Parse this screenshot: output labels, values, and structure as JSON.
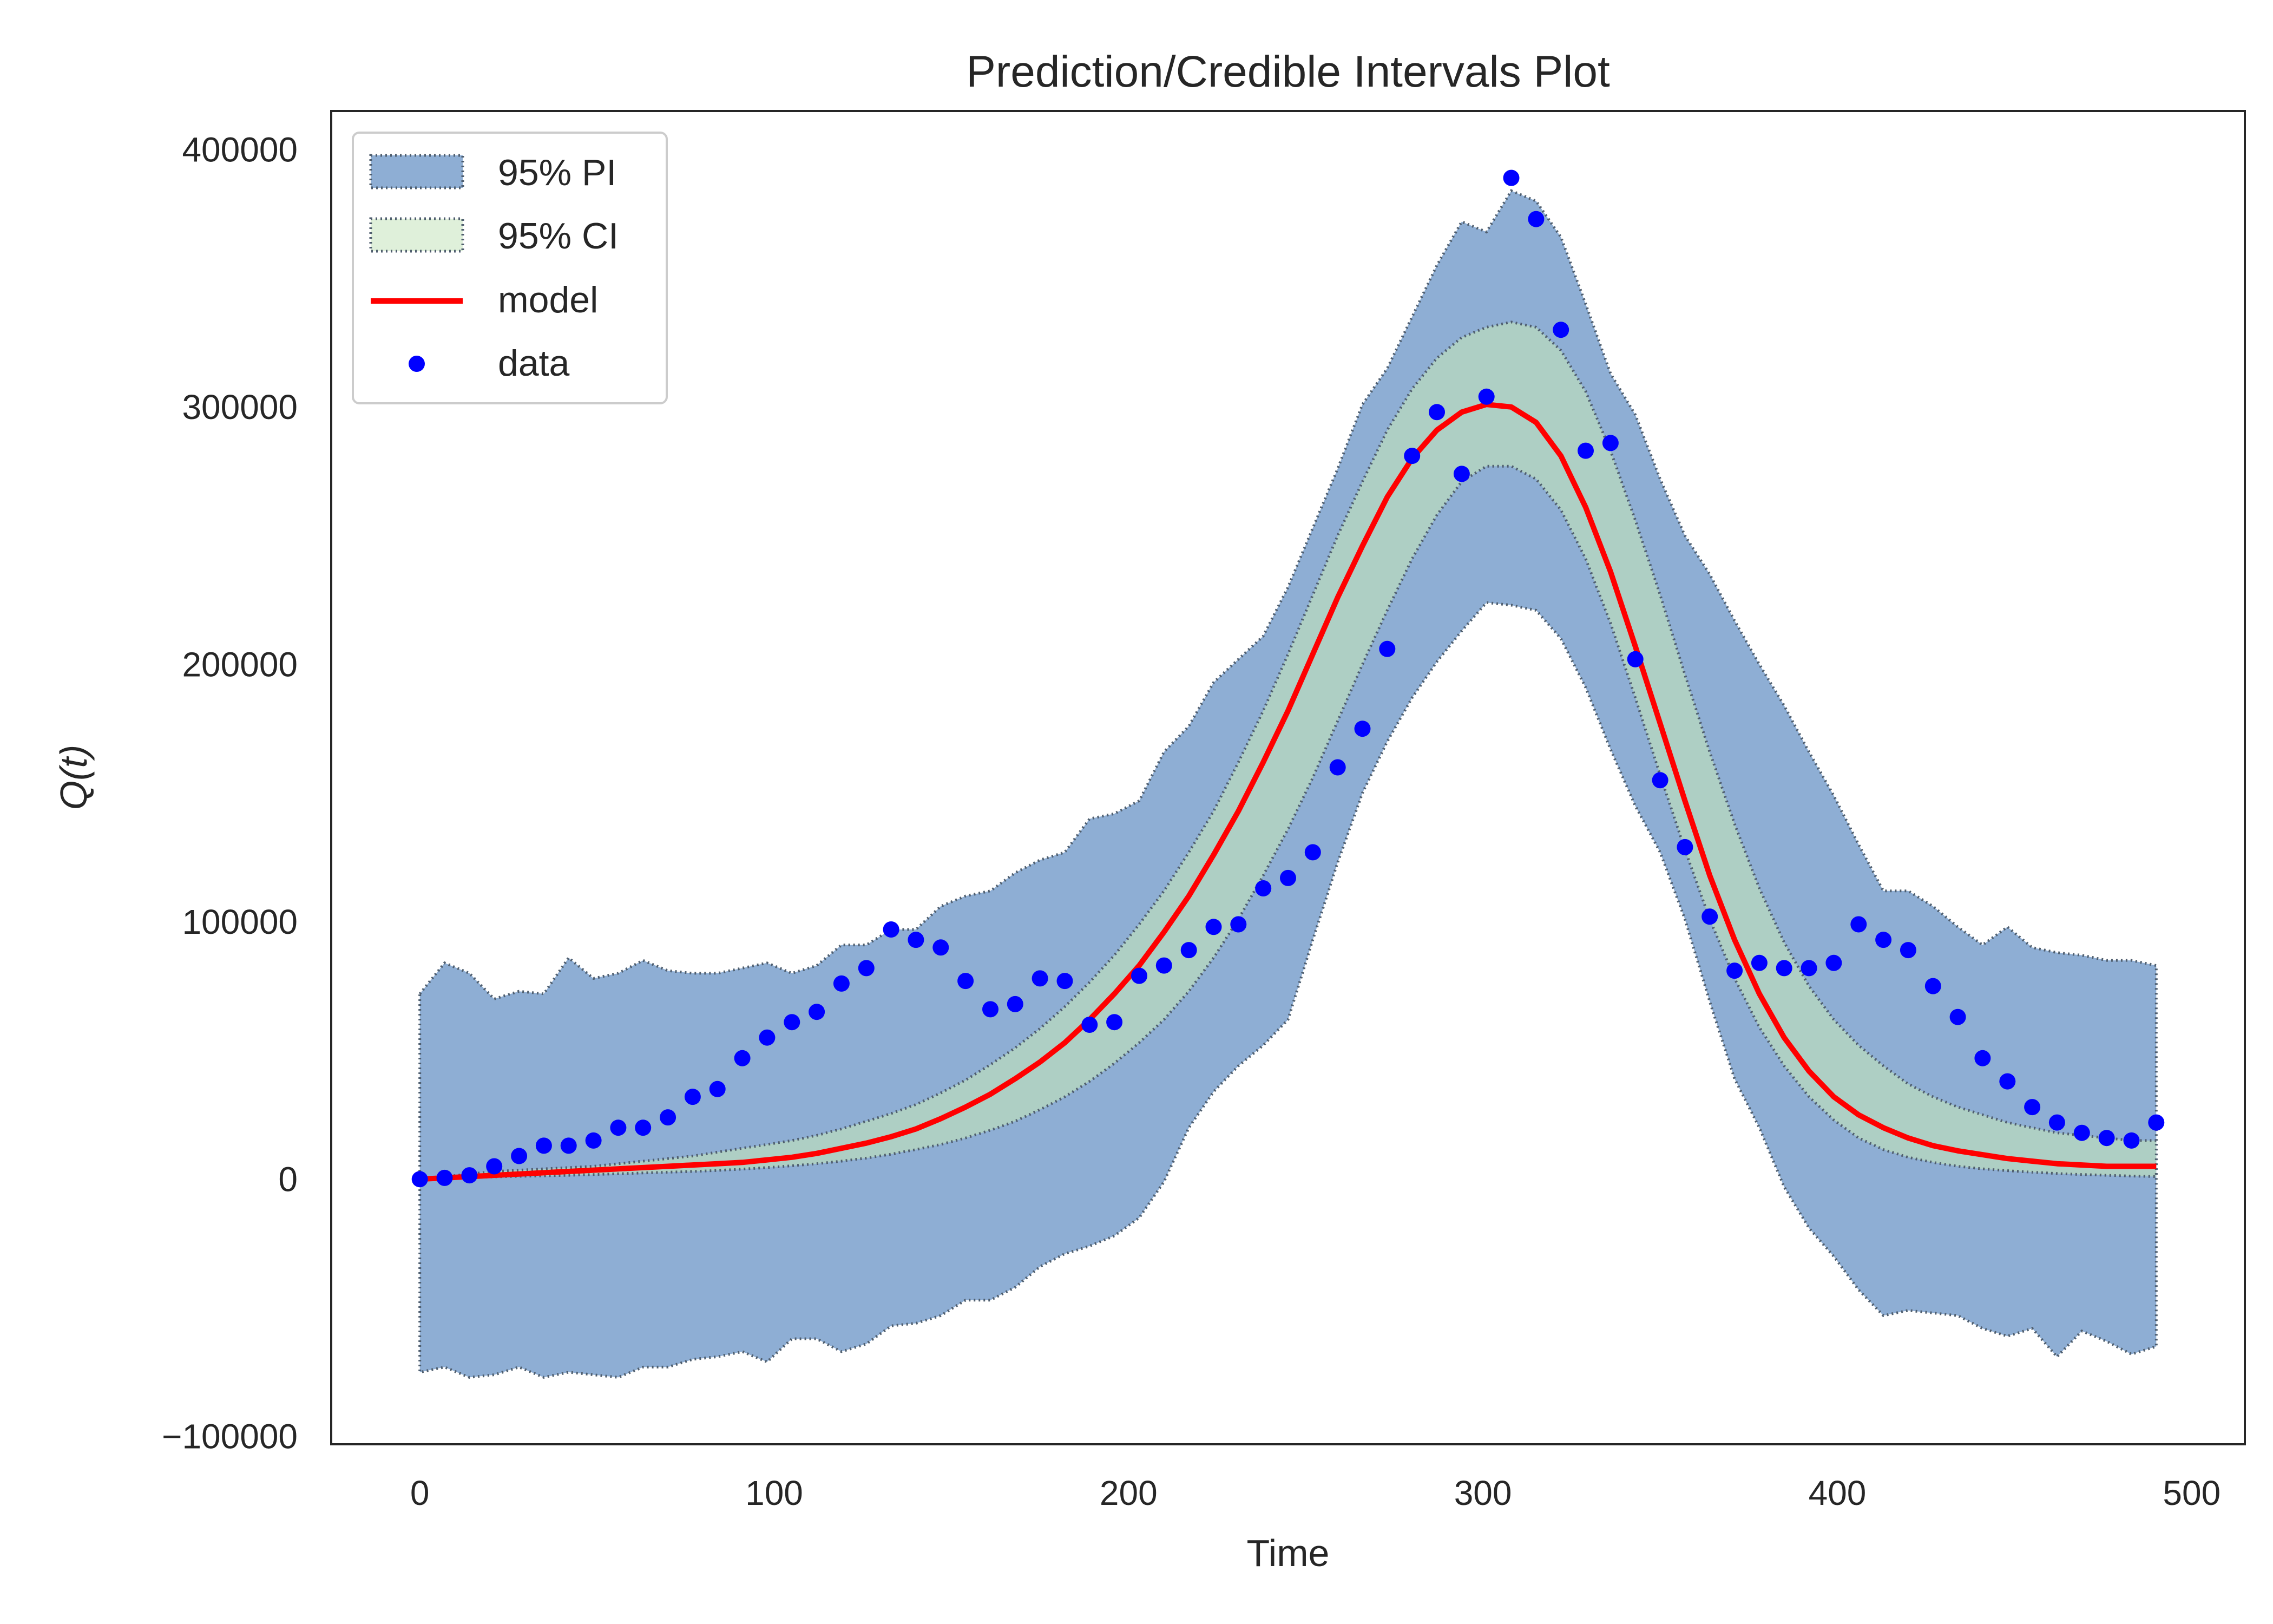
{
  "chart_data": {
    "type": "line",
    "title": "Prediction/Credible Intervals Plot",
    "xlabel": "Time",
    "ylabel": "Q(t)",
    "xlim": [
      -25,
      515
    ],
    "ylim": [
      -103000,
      415000
    ],
    "xticks": [
      0,
      100,
      200,
      300,
      400,
      500
    ],
    "xtick_labels": [
      "0",
      "100",
      "200",
      "300",
      "400",
      "500"
    ],
    "yticks": [
      -100000,
      0,
      100000,
      200000,
      300000,
      400000
    ],
    "ytick_labels": [
      "−100000",
      "0",
      "100000",
      "200000",
      "300000",
      "400000"
    ],
    "grid": false,
    "legend_position": "top-left",
    "legend": [
      {
        "key": "pi",
        "label": "95% PI"
      },
      {
        "key": "ci",
        "label": "95% CI"
      },
      {
        "key": "model",
        "label": "model"
      },
      {
        "key": "data",
        "label": "data"
      }
    ],
    "colors": {
      "pi_fill": "#8eaed4",
      "ci_fill": "#aecfc4",
      "ci_legend_fill": "#dff0da",
      "band_edge": "#4f5e6e",
      "model": "#ff0000",
      "data": "#0000ff",
      "frame": "#262626"
    },
    "x": [
      0,
      7,
      14,
      21,
      28,
      35,
      42,
      49,
      56,
      63,
      70,
      77,
      84,
      91,
      98,
      105,
      112,
      119,
      126,
      133,
      140,
      147,
      154,
      161,
      168,
      175,
      182,
      189,
      196,
      203,
      210,
      217,
      224,
      231,
      238,
      245,
      252,
      259,
      266,
      273,
      280,
      287,
      294,
      301,
      308,
      315,
      322,
      329,
      336,
      343,
      350,
      357,
      364,
      371,
      378,
      385,
      392,
      399,
      406,
      413,
      420,
      427,
      434,
      441,
      448,
      455,
      462,
      469,
      476,
      483,
      490
    ],
    "series": [
      {
        "name": "data",
        "role": "data",
        "values": [
          0,
          500,
          1500,
          5000,
          9000,
          13000,
          13000,
          15000,
          20000,
          20000,
          24000,
          32000,
          35000,
          47000,
          55000,
          61000,
          65000,
          76000,
          82000,
          97000,
          93000,
          90000,
          77000,
          66000,
          68000,
          78000,
          77000,
          60000,
          61000,
          79000,
          83000,
          89000,
          98000,
          99000,
          113000,
          117000,
          127000,
          160000,
          175000,
          206000,
          281000,
          298000,
          274000,
          304000,
          389000,
          373000,
          330000,
          283000,
          286000,
          202000,
          155000,
          129000,
          102000,
          81000,
          84000,
          82000,
          82000,
          84000,
          99000,
          93000,
          89000,
          75000,
          63000,
          47000,
          38000,
          28000,
          22000,
          18000,
          16000,
          15000,
          22000
        ]
      },
      {
        "name": "model",
        "role": "model",
        "values": [
          0,
          500,
          1000,
          1500,
          2000,
          2500,
          3000,
          3500,
          4000,
          4500,
          5000,
          5500,
          6000,
          6500,
          7500,
          8500,
          10000,
          12000,
          14000,
          16500,
          19500,
          23500,
          28000,
          33000,
          39000,
          45500,
          53000,
          62000,
          72000,
          83000,
          96000,
          110000,
          126000,
          143000,
          162000,
          182000,
          204000,
          226000,
          246000,
          265000,
          280000,
          291000,
          298000,
          301000,
          300000,
          294000,
          281000,
          261000,
          236000,
          207000,
          177000,
          147000,
          118000,
          93000,
          72000,
          55000,
          42000,
          32000,
          25000,
          20000,
          16000,
          13000,
          11000,
          9500,
          8000,
          7000,
          6000,
          5500,
          5000,
          5000,
          5000
        ]
      },
      {
        "name": "95% CI upper",
        "role": "ci_upper",
        "values": [
          0,
          1000,
          2000,
          3000,
          3500,
          4000,
          4500,
          5000,
          6000,
          7000,
          8000,
          9000,
          10500,
          12000,
          13500,
          15000,
          17000,
          19500,
          22500,
          25500,
          29000,
          33500,
          38500,
          44500,
          51000,
          58500,
          67000,
          76500,
          87000,
          99000,
          112000,
          127000,
          143000,
          162000,
          182000,
          204000,
          227000,
          250000,
          271000,
          291000,
          307000,
          319000,
          327000,
          331000,
          333000,
          331000,
          322000,
          306000,
          283000,
          256000,
          227000,
          196000,
          166000,
          138000,
          113000,
          92000,
          75000,
          62000,
          52000,
          44000,
          37000,
          32000,
          28000,
          25000,
          22000,
          20000,
          18000,
          17000,
          16000,
          15000,
          15000
        ]
      },
      {
        "name": "95% CI lower",
        "role": "ci_lower",
        "values": [
          0,
          300,
          600,
          900,
          1100,
          1300,
          1500,
          1800,
          2100,
          2400,
          2700,
          3000,
          3400,
          3900,
          4500,
          5200,
          6000,
          7000,
          8200,
          9700,
          11500,
          13500,
          16000,
          19000,
          22500,
          27000,
          32000,
          38000,
          45000,
          53000,
          62000,
          73000,
          86000,
          101000,
          118000,
          136000,
          156000,
          178000,
          200000,
          221000,
          241000,
          258000,
          271000,
          277000,
          277000,
          272000,
          260000,
          241000,
          216000,
          187000,
          157000,
          128000,
          101000,
          78000,
          59000,
          44000,
          32000,
          23000,
          16000,
          11500,
          8500,
          6500,
          5000,
          4000,
          3300,
          2700,
          2200,
          1800,
          1500,
          1200,
          1000
        ]
      },
      {
        "name": "95% PI upper",
        "role": "pi_upper",
        "values": [
          72000,
          84000,
          80000,
          70000,
          73000,
          72000,
          86000,
          78000,
          80000,
          85000,
          81000,
          80000,
          80000,
          82000,
          84000,
          80000,
          83000,
          91000,
          91000,
          97000,
          97000,
          106000,
          110000,
          112000,
          119000,
          124000,
          127000,
          140000,
          142000,
          147000,
          166000,
          176000,
          193000,
          202000,
          211000,
          230000,
          253000,
          276000,
          301000,
          315000,
          335000,
          355000,
          372000,
          368000,
          384000,
          380000,
          366000,
          340000,
          313000,
          297000,
          272000,
          250000,
          235000,
          217000,
          200000,
          184000,
          166000,
          149000,
          130000,
          112000,
          112000,
          106000,
          98000,
          91000,
          98000,
          90000,
          88000,
          87000,
          85000,
          85000,
          83000
        ]
      },
      {
        "name": "95% PI lower",
        "role": "pi_lower",
        "values": [
          -75000,
          -73000,
          -77000,
          -76000,
          -73000,
          -77000,
          -75000,
          -76000,
          -77000,
          -73000,
          -73000,
          -70000,
          -69000,
          -67000,
          -71000,
          -62000,
          -62000,
          -67000,
          -64000,
          -57000,
          -56000,
          -53000,
          -47000,
          -47000,
          -42000,
          -34000,
          -29000,
          -26000,
          -22000,
          -15000,
          -1000,
          20000,
          34000,
          44000,
          52000,
          62000,
          93000,
          123000,
          150000,
          170000,
          187000,
          201000,
          213000,
          224000,
          223000,
          221000,
          210000,
          191000,
          167000,
          145000,
          127000,
          101000,
          69000,
          39000,
          20000,
          -3000,
          -19000,
          -30000,
          -43000,
          -53000,
          -51000,
          -52000,
          -53000,
          -58000,
          -61000,
          -58000,
          -69000,
          -59000,
          -63000,
          -68000,
          -65000
        ]
      }
    ]
  }
}
